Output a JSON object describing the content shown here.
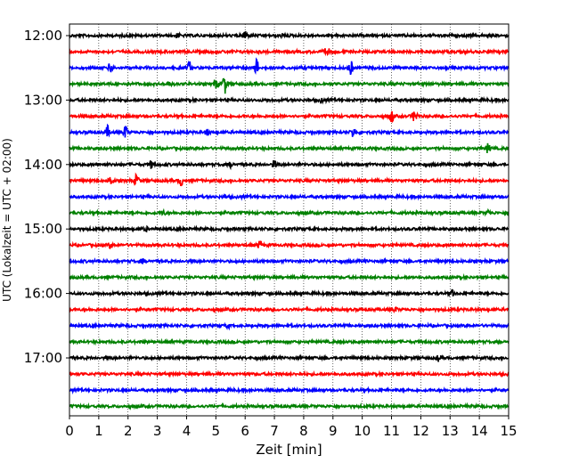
{
  "chart_data": {
    "type": "line",
    "title": "",
    "xlabel": "Zeit  [min]",
    "ylabel": "UTC (Lokalzeit = UTC + 02:00)",
    "xlim": [
      0,
      15
    ],
    "x_ticks": [
      0,
      1,
      2,
      3,
      4,
      5,
      6,
      7,
      8,
      9,
      10,
      11,
      12,
      13,
      14,
      15
    ],
    "x_tick_labels": [
      "0",
      "1",
      "2",
      "3",
      "4",
      "5",
      "6",
      "7",
      "8",
      "9",
      "10",
      "11",
      "12",
      "13",
      "14",
      "15"
    ],
    "y_tick_labels": [
      "12:00",
      "13:00",
      "14:00",
      "15:00",
      "16:00",
      "17:00"
    ],
    "y_tick_rows": [
      0,
      4,
      8,
      12,
      16,
      20
    ],
    "grid": {
      "vertical_dotted": true
    },
    "row_minutes": 15,
    "start_time": "12:00",
    "color_cycle": [
      "#000000",
      "#ff0000",
      "#0000ff",
      "#008000"
    ],
    "series": [
      {
        "start": "12:00",
        "events": [
          {
            "t": 3.7,
            "amp": 0.25
          },
          {
            "t": 6.0,
            "amp": 0.7
          },
          {
            "t": 7.3,
            "amp": 0.2
          }
        ]
      },
      {
        "start": "12:15",
        "events": [
          {
            "t": 8.8,
            "amp": 0.6
          }
        ]
      },
      {
        "start": "12:30",
        "events": [
          {
            "t": 1.4,
            "amp": 0.6
          },
          {
            "t": 4.1,
            "amp": 0.7
          },
          {
            "t": 6.4,
            "amp": 1.0
          },
          {
            "t": 9.6,
            "amp": 0.9
          }
        ]
      },
      {
        "start": "12:45",
        "events": [
          {
            "t": 3.4,
            "amp": 0.3
          },
          {
            "t": 5.0,
            "amp": 0.6
          },
          {
            "t": 5.3,
            "amp": 1.2
          }
        ]
      },
      {
        "start": "13:00",
        "events": [
          {
            "t": 8.6,
            "amp": 0.25
          }
        ]
      },
      {
        "start": "13:15",
        "events": [
          {
            "t": 11.0,
            "amp": 0.8
          },
          {
            "t": 11.8,
            "amp": 0.9
          }
        ]
      },
      {
        "start": "13:30",
        "events": [
          {
            "t": 1.3,
            "amp": 0.7
          },
          {
            "t": 1.9,
            "amp": 0.8
          },
          {
            "t": 4.7,
            "amp": 0.3
          },
          {
            "t": 9.7,
            "amp": 0.7
          }
        ]
      },
      {
        "start": "13:45",
        "events": [
          {
            "t": 14.3,
            "amp": 0.55
          }
        ]
      },
      {
        "start": "14:00",
        "events": [
          {
            "t": 2.8,
            "amp": 0.45
          },
          {
            "t": 5.5,
            "amp": 0.25
          },
          {
            "t": 7.0,
            "amp": 0.45
          }
        ]
      },
      {
        "start": "14:15",
        "events": [
          {
            "t": 1.4,
            "amp": 0.6
          },
          {
            "t": 2.3,
            "amp": 0.8
          },
          {
            "t": 3.8,
            "amp": 0.6
          }
        ]
      },
      {
        "start": "14:30",
        "events": [
          {
            "t": 5.3,
            "amp": 0.2
          }
        ]
      },
      {
        "start": "14:45",
        "events": [
          {
            "t": 3.2,
            "amp": 0.25
          },
          {
            "t": 14.3,
            "amp": 0.3
          }
        ]
      },
      {
        "start": "15:00",
        "events": [
          {
            "t": 2.6,
            "amp": 0.25
          }
        ]
      },
      {
        "start": "15:15",
        "events": [
          {
            "t": 1.4,
            "amp": 0.3
          },
          {
            "t": 6.5,
            "amp": 0.5
          }
        ]
      },
      {
        "start": "15:30",
        "events": [
          {
            "t": 2.5,
            "amp": 0.25
          }
        ]
      },
      {
        "start": "15:45",
        "events": []
      },
      {
        "start": "16:00",
        "events": [
          {
            "t": 13.1,
            "amp": 0.35
          }
        ]
      },
      {
        "start": "16:15",
        "events": [
          {
            "t": 11.1,
            "amp": 0.3
          }
        ]
      },
      {
        "start": "16:30",
        "events": [
          {
            "t": 5.4,
            "amp": 0.25
          }
        ]
      },
      {
        "start": "16:45",
        "events": []
      },
      {
        "start": "17:00",
        "events": [
          {
            "t": 12.6,
            "amp": 0.3
          }
        ]
      },
      {
        "start": "17:15",
        "events": []
      },
      {
        "start": "17:30",
        "events": []
      },
      {
        "start": "17:45",
        "events": []
      }
    ]
  }
}
